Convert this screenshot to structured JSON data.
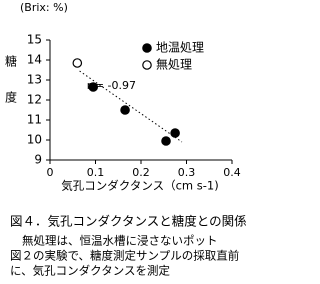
{
  "chart_data": {
    "type": "scatter",
    "y_unit": "(Brix: %)",
    "ylabel": "糖度",
    "xlabel": "気孔コンダクタンス（cm s-1)",
    "xlim": [
      0,
      0.4
    ],
    "xticks": [
      0,
      0.1,
      0.2,
      0.3,
      0.4
    ],
    "ylim": [
      9,
      15
    ],
    "yticks": [
      9,
      10,
      11,
      12,
      13,
      14,
      15
    ],
    "series": [
      {
        "name": "地温処理",
        "color": "#000000",
        "marker": "filled",
        "x": [
          0.095,
          0.165,
          0.255,
          0.275
        ],
        "values": [
          12.65,
          11.5,
          9.95,
          10.35
        ]
      },
      {
        "name": "無処理",
        "color": "#000000",
        "marker": "open",
        "x": [
          0.06
        ],
        "values": [
          13.85
        ]
      }
    ],
    "trendline": {
      "x": [
        0.065,
        0.29
      ],
      "values": [
        13.45,
        9.9
      ]
    },
    "annotation": "r = -0.97",
    "legend": "upper right",
    "caption": "図４．気孔コンダクタンスと糖度との関係",
    "notes": [
      "無処理は、恒温水槽に浸さないポット",
      "図２の実験で、糖度測定サンプルの採取直前",
      "に、気孔コンダクタンスを測定"
    ]
  }
}
